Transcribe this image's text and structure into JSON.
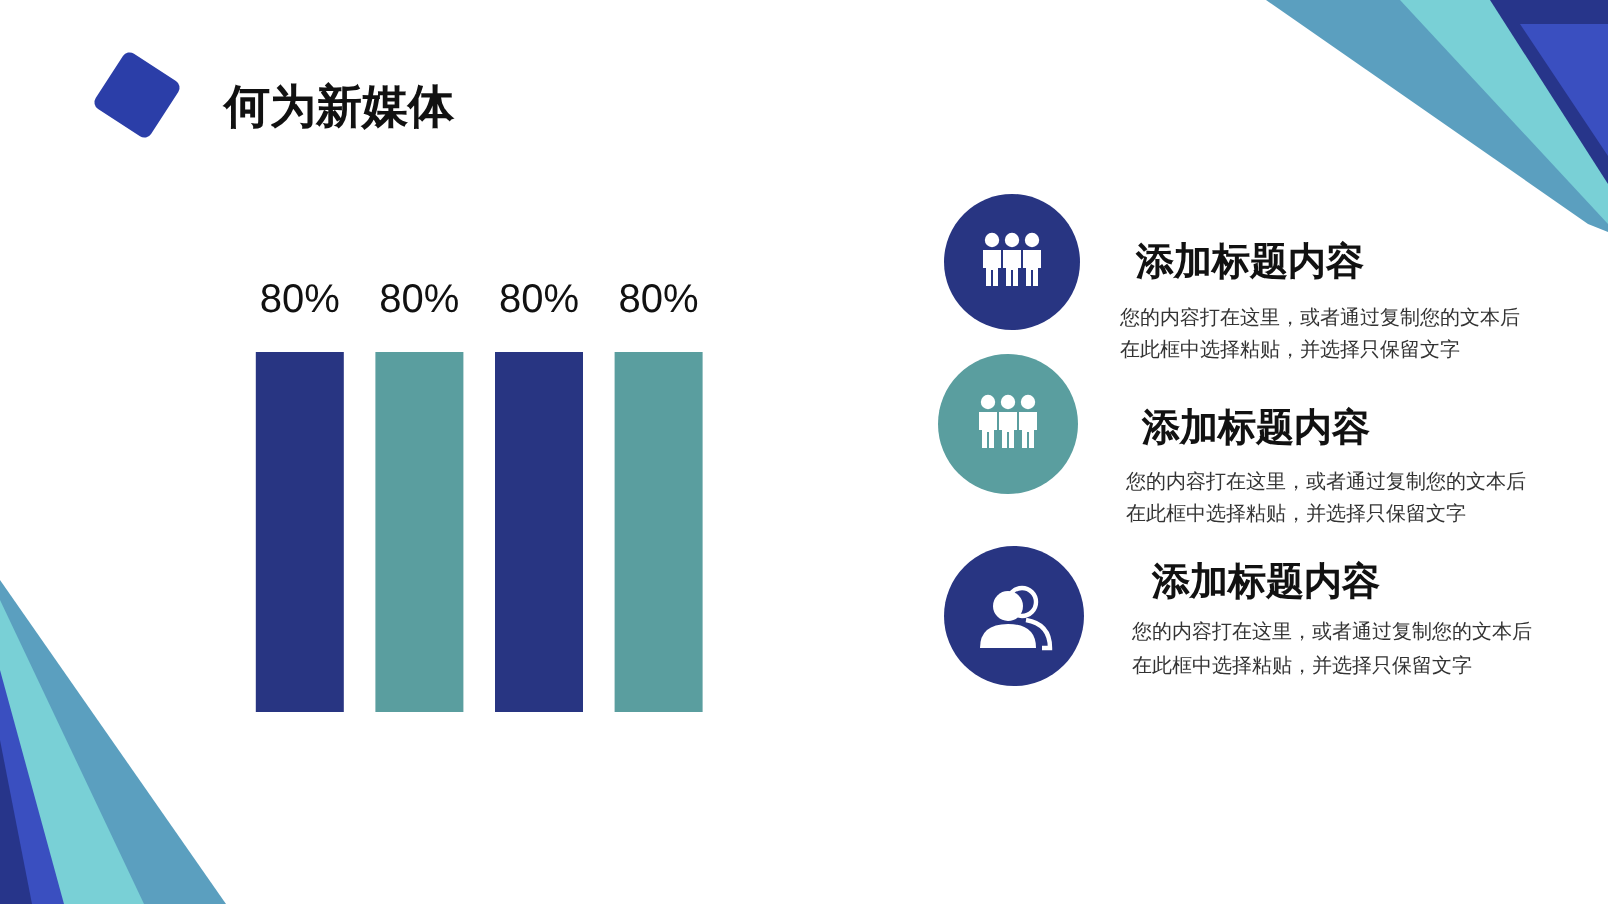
{
  "chart_data": [
    {
      "type": "bar",
      "title": "何为新媒体",
      "categories": [
        null,
        null,
        null,
        null
      ],
      "values": [
        80,
        80,
        80,
        80
      ],
      "colors": [
        "#283582",
        "#5a9e9f",
        "#283582",
        "#5a9e9f"
      ],
      "value_labels": [
        "80%",
        "80%",
        "80%",
        "80%"
      ]
    },
    {
      "type": "other",
      "annotations": [
        "添加标题内容",
        "您的内容打在这里，或者通过复制您的文本后",
        "在此框中选择粘贴，并选择只保留文字",
        "添加标题内容",
        "您的内容打在这里，或者通过复制您的文本后",
        "在此框中选择粘贴，并选择只保留文字",
        "添加标题内容",
        "您的内容打在这里，或者通过复制您的文本后",
        "在此框中选择粘贴，并选择只保留文字"
      ]
    }
  ]
}
